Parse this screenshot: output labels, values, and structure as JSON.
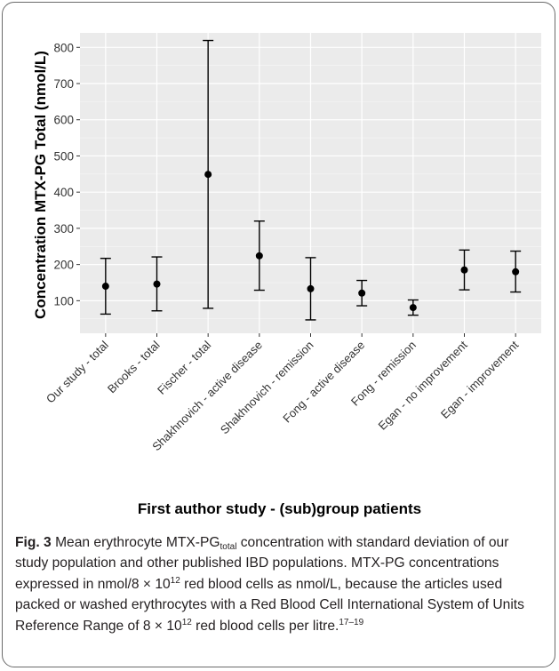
{
  "chart_data": {
    "type": "errorbar",
    "ylabel": "Concentration MTX-PG Total (nmol/L)",
    "xlabel": "First author study - (sub)group patients",
    "ylim": [
      10,
      840
    ],
    "yticks": [
      100,
      200,
      300,
      400,
      500,
      600,
      700,
      800
    ],
    "grid": true,
    "categories": [
      "Our study - total",
      "Brooks - total",
      "Fischer - total",
      "Shakhnovich - active disease",
      "Shakhnovich - remission",
      "Fong - active disease",
      "Fong - remission",
      "Egan - no improvement",
      "Egan - improvement"
    ],
    "mean": [
      140,
      146,
      449,
      224,
      133,
      121,
      81,
      185,
      180
    ],
    "lower": [
      63,
      72,
      79,
      129,
      47,
      86,
      60,
      130,
      124
    ],
    "upper": [
      217,
      221,
      819,
      320,
      219,
      156,
      102,
      240,
      237
    ]
  },
  "caption": {
    "label": "Fig. 3",
    "t1": " Mean erythrocyte MTX-PG",
    "sub1": "total",
    "t2": " concentration with standard deviation of our study population and other published IBD populations. MTX-PG concentrations expressed in nmol/8 × 10",
    "sup1": "12",
    "t3": " red blood cells as nmol/L, because the articles used packed or washed erythrocytes with a Red Blood Cell International System of Units Reference Range of 8 × 10",
    "sup2": "12",
    "t4": " red blood cells per litre.",
    "sup3": "17–19"
  }
}
